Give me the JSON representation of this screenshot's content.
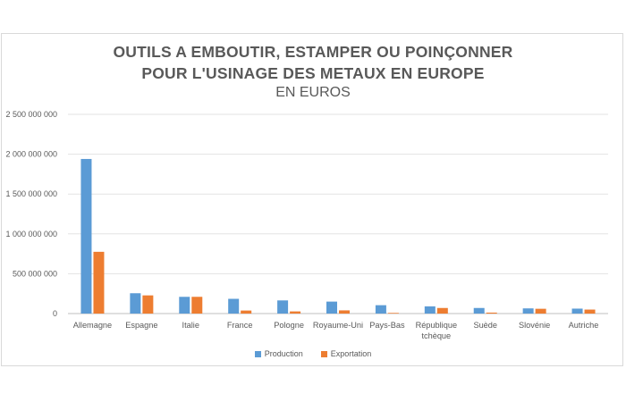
{
  "chart_data": {
    "type": "bar",
    "title_line1": "OUTILS A EMBOUTIR, ESTAMPER OU POINÇONNER",
    "title_line2": "POUR L'USINAGE DES METAUX EN EUROPE",
    "subtitle": "EN EUROS",
    "categories": [
      "Allemagne",
      "Espagne",
      "Italie",
      "France",
      "Pologne",
      "Royaume-Uni",
      "Pays-Bas",
      "République tchèque",
      "Suède",
      "Slovénie",
      "Autriche"
    ],
    "series": [
      {
        "name": "Production",
        "color": "#5b9bd5",
        "values": [
          1940000000,
          255000000,
          210000000,
          185000000,
          165000000,
          150000000,
          105000000,
          90000000,
          70000000,
          65000000,
          62000000
        ]
      },
      {
        "name": "Exportation",
        "color": "#ed7d31",
        "values": [
          775000000,
          228000000,
          210000000,
          38000000,
          27000000,
          40000000,
          8000000,
          70000000,
          12000000,
          60000000,
          50000000
        ]
      }
    ],
    "ylim": [
      0,
      2500000000
    ],
    "yticks": [
      0,
      500000000,
      1000000000,
      1500000000,
      2000000000,
      2500000000
    ],
    "ytick_labels": [
      "0",
      "500 000 000",
      "1 000 000 000",
      "1 500 000 000",
      "2 000 000 000",
      "2 500 000 000"
    ],
    "grid": true,
    "legend_position": "bottom"
  }
}
